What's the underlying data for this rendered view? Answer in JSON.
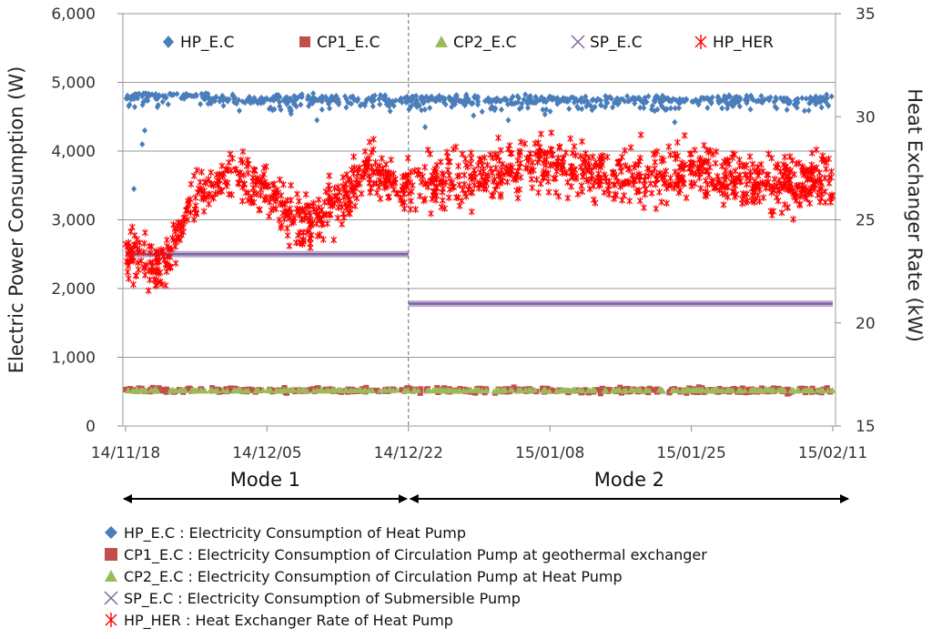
{
  "chart_data": {
    "type": "scatter",
    "title": "",
    "ylabel": "Electric Power Consumption (W)",
    "y2label": "Heat Exchanger Rate (kW)",
    "ylim": [
      0,
      6000
    ],
    "y2lim": [
      15,
      35
    ],
    "xlim": [
      "14/11/18",
      "15/02/11"
    ],
    "x_ticks": [
      "14/11/18",
      "14/12/05",
      "14/12/22",
      "15/01/08",
      "15/01/25",
      "15/02/11"
    ],
    "y_ticks": [
      "0",
      "1,000",
      "2,000",
      "3,000",
      "4,000",
      "5,000",
      "6,000"
    ],
    "y2_ticks": [
      "15",
      "20",
      "25",
      "30",
      "35"
    ],
    "grid": true,
    "legend_position": "top inside",
    "series": [
      {
        "name": "HP_E.C",
        "axis": "left",
        "marker": "diamond",
        "color": "#4a7ebb",
        "typical_value": 4750,
        "range": [
          3450,
          4850
        ]
      },
      {
        "name": "CP1_E.C",
        "axis": "left",
        "marker": "square",
        "color": "#c0504d",
        "typical_value": 520,
        "range": [
          400,
          600
        ]
      },
      {
        "name": "CP2_E.C",
        "axis": "left",
        "marker": "triangle",
        "color": "#9bbb59",
        "typical_value": 520,
        "range": [
          480,
          540
        ]
      },
      {
        "name": "SP_E.C",
        "axis": "left",
        "marker": "x",
        "color": "#8064a2",
        "segments": [
          {
            "start": "14/11/18",
            "end": "14/12/22",
            "value": 2500
          },
          {
            "start": "14/12/22",
            "end": "15/02/11",
            "value": 1780
          }
        ]
      },
      {
        "name": "HP_HER",
        "axis": "right",
        "marker": "asterisk",
        "color": "#ff0000",
        "trend": [
          {
            "x": "14/11/18",
            "y": 23.5
          },
          {
            "x": "14/11/22",
            "y": 22.5
          },
          {
            "x": "14/11/27",
            "y": 26.5
          },
          {
            "x": "14/12/01",
            "y": 27.0
          },
          {
            "x": "14/12/05",
            "y": 26.3
          },
          {
            "x": "14/12/09",
            "y": 24.8
          },
          {
            "x": "14/12/13",
            "y": 25.5
          },
          {
            "x": "14/12/17",
            "y": 27.5
          },
          {
            "x": "14/12/22",
            "y": 26.5
          },
          {
            "x": "15/01/01",
            "y": 27.2
          },
          {
            "x": "15/01/08",
            "y": 27.8
          },
          {
            "x": "15/01/15",
            "y": 27.0
          },
          {
            "x": "15/01/25",
            "y": 27.5
          },
          {
            "x": "15/02/04",
            "y": 26.8
          },
          {
            "x": "15/02/11",
            "y": 26.8
          }
        ],
        "range": [
          21.5,
          30.5
        ]
      }
    ],
    "annotations": [
      {
        "text": "Mode 1",
        "from": "14/11/18",
        "to": "14/12/22"
      },
      {
        "text": "Mode 2",
        "from": "14/12/22",
        "to": "15/02/11"
      }
    ],
    "mode_divider": "14/12/22"
  },
  "legend_descriptions": [
    {
      "code": "HP_E.C",
      "text": "HP_E.C : Electricity Consumption of Heat Pump"
    },
    {
      "code": "CP1_E.C",
      "text": "CP1_E.C : Electricity Consumption of Circulation Pump at geothermal exchanger"
    },
    {
      "code": "CP2_E.C",
      "text": "CP2_E.C : Electricity Consumption of Circulation Pump at Heat Pump"
    },
    {
      "code": "SP_E.C",
      "text": "SP_E.C : Electricity Consumption of Submersible Pump"
    },
    {
      "code": "HP_HER",
      "text": "HP_HER : Heat Exchanger Rate of Heat Pump"
    }
  ]
}
